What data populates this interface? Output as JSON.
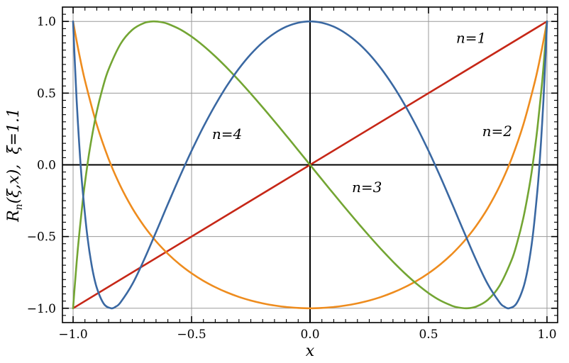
{
  "figure": {
    "background": "#ffffff",
    "frame_color": "#000000",
    "grid_color": "#9a9a9a",
    "axis_zero_color": "#000000",
    "tick_color": "#000000"
  },
  "chart_data": {
    "type": "line",
    "xlabel": "x",
    "ylabel": "Rn(ξ,x),  ξ=1.1",
    "ylabel_parts": {
      "base": "R",
      "sub": "n",
      "rest": "(ξ,x),  ξ=1.1"
    },
    "xlim": [
      -1.045,
      1.045
    ],
    "ylim": [
      -1.1,
      1.1
    ],
    "xticks": [
      -1.0,
      -0.5,
      0.0,
      0.5,
      1.0
    ],
    "xtick_labels": [
      "−1.0",
      "−0.5",
      "0.0",
      "0.5",
      "1.0"
    ],
    "yticks": [
      -1.0,
      -0.5,
      0.0,
      0.5,
      1.0
    ],
    "ytick_labels": [
      "−1.0",
      "−0.5",
      "0.0",
      "0.5",
      "1.0"
    ],
    "minor_tick_step": 0.05,
    "grid": true,
    "series": [
      {
        "name": "n=1",
        "color": "#c62717",
        "label_pos": [
          0.68,
          0.85
        ],
        "points": [
          [
            -1.0,
            -1.0
          ],
          [
            1.0,
            1.0
          ]
        ]
      },
      {
        "name": "n=2",
        "color": "#ee8c1e",
        "label_pos": [
          0.79,
          0.2
        ],
        "points": [
          [
            -1.0,
            1.0
          ],
          [
            -0.99,
            0.9071
          ],
          [
            -0.975,
            0.7783
          ],
          [
            -0.95,
            0.5882
          ],
          [
            -0.9,
            0.2796
          ],
          [
            -0.85,
            0.0406
          ],
          [
            -0.8,
            -0.149
          ],
          [
            -0.75,
            -0.3024
          ],
          [
            -0.7,
            -0.4283
          ],
          [
            -0.65,
            -0.5328
          ],
          [
            -0.6,
            -0.6203
          ],
          [
            -0.55,
            -0.694
          ],
          [
            -0.5,
            -0.7561
          ],
          [
            -0.45,
            -0.8087
          ],
          [
            -0.4,
            -0.853
          ],
          [
            -0.35,
            -0.8901
          ],
          [
            -0.3,
            -0.9209
          ],
          [
            -0.25,
            -0.946
          ],
          [
            -0.2,
            -0.9659
          ],
          [
            -0.15,
            -0.981
          ],
          [
            -0.1,
            -0.9916
          ],
          [
            -0.05,
            -0.9979
          ],
          [
            0.0,
            -1.0
          ],
          [
            0.05,
            -0.9979
          ],
          [
            0.1,
            -0.9916
          ],
          [
            0.15,
            -0.981
          ],
          [
            0.2,
            -0.9659
          ],
          [
            0.25,
            -0.946
          ],
          [
            0.3,
            -0.9209
          ],
          [
            0.35,
            -0.8901
          ],
          [
            0.4,
            -0.853
          ],
          [
            0.45,
            -0.8087
          ],
          [
            0.5,
            -0.7561
          ],
          [
            0.55,
            -0.694
          ],
          [
            0.6,
            -0.6203
          ],
          [
            0.65,
            -0.5328
          ],
          [
            0.7,
            -0.4283
          ],
          [
            0.75,
            -0.3024
          ],
          [
            0.8,
            -0.149
          ],
          [
            0.85,
            0.0406
          ],
          [
            0.9,
            0.2796
          ],
          [
            0.95,
            0.5882
          ],
          [
            0.975,
            0.7783
          ],
          [
            0.99,
            0.9071
          ],
          [
            1.0,
            1.0
          ]
        ]
      },
      {
        "name": "n=3",
        "color": "#73a533",
        "label_pos": [
          0.24,
          -0.19
        ],
        "points": [
          [
            -1.0,
            -1.0
          ],
          [
            -0.995,
            -0.8863
          ],
          [
            -0.98,
            -0.5857
          ],
          [
            -0.96,
            -0.2614
          ],
          [
            -0.94,
            -0.0037
          ],
          [
            -0.925,
            0.1557
          ],
          [
            -0.9,
            0.3711
          ],
          [
            -0.875,
            0.5376
          ],
          [
            -0.85,
            0.6666
          ],
          [
            -0.8,
            0.8425
          ],
          [
            -0.75,
            0.9418
          ],
          [
            -0.7,
            0.9891
          ],
          [
            -0.66,
            1.0
          ],
          [
            -0.625,
            0.9942
          ],
          [
            -0.6,
            0.9831
          ],
          [
            -0.55,
            0.9464
          ],
          [
            -0.5,
            0.8942
          ],
          [
            -0.45,
            0.83
          ],
          [
            -0.4,
            0.7563
          ],
          [
            -0.35,
            0.6752
          ],
          [
            -0.3,
            0.5881
          ],
          [
            -0.25,
            0.4965
          ],
          [
            -0.2,
            0.4011
          ],
          [
            -0.15,
            0.3031
          ],
          [
            -0.1,
            0.2031
          ],
          [
            -0.05,
            0.1019
          ],
          [
            0.0,
            0.0
          ],
          [
            0.05,
            -0.1019
          ],
          [
            0.1,
            -0.2031
          ],
          [
            0.15,
            -0.3031
          ],
          [
            0.2,
            -0.4011
          ],
          [
            0.25,
            -0.4965
          ],
          [
            0.3,
            -0.5881
          ],
          [
            0.35,
            -0.6752
          ],
          [
            0.4,
            -0.7563
          ],
          [
            0.45,
            -0.83
          ],
          [
            0.5,
            -0.8942
          ],
          [
            0.55,
            -0.9464
          ],
          [
            0.6,
            -0.9831
          ],
          [
            0.625,
            -0.9942
          ],
          [
            0.66,
            -1.0
          ],
          [
            0.7,
            -0.9891
          ],
          [
            0.75,
            -0.9418
          ],
          [
            0.8,
            -0.8425
          ],
          [
            0.85,
            -0.6666
          ],
          [
            0.875,
            -0.5376
          ],
          [
            0.9,
            -0.3711
          ],
          [
            0.925,
            -0.1557
          ],
          [
            0.94,
            0.0037
          ],
          [
            0.96,
            0.2614
          ],
          [
            0.98,
            0.5857
          ],
          [
            0.995,
            0.8863
          ],
          [
            1.0,
            1.0
          ]
        ]
      },
      {
        "name": "n=4",
        "color": "#3a68a2",
        "label_pos": [
          -0.35,
          0.18
        ],
        "points": [
          [
            -1.0,
            1.0
          ],
          [
            -0.995,
            0.7994
          ],
          [
            -0.99,
            0.6176
          ],
          [
            -0.985,
            0.4526
          ],
          [
            -0.98,
            0.3028
          ],
          [
            -0.97,
            0.0429
          ],
          [
            -0.96,
            -0.172
          ],
          [
            -0.94,
            -0.496
          ],
          [
            -0.92,
            -0.7144
          ],
          [
            -0.9,
            -0.8566
          ],
          [
            -0.87,
            -0.9695
          ],
          [
            -0.84,
            -1.0
          ],
          [
            -0.82,
            -0.9889
          ],
          [
            -0.8,
            -0.9594
          ],
          [
            -0.75,
            -0.832
          ],
          [
            -0.7,
            -0.6601
          ],
          [
            -0.65,
            -0.4692
          ],
          [
            -0.625,
            -0.3715
          ],
          [
            -0.6,
            -0.274
          ],
          [
            -0.55,
            -0.0832
          ],
          [
            -0.5,
            0.0977
          ],
          [
            -0.45,
            0.2653
          ],
          [
            -0.4,
            0.4175
          ],
          [
            -0.35,
            0.5531
          ],
          [
            -0.3,
            0.6712
          ],
          [
            -0.25,
            0.7715
          ],
          [
            -0.2,
            0.8537
          ],
          [
            -0.15,
            0.9177
          ],
          [
            -0.1,
            0.9634
          ],
          [
            -0.05,
            0.9908
          ],
          [
            0.0,
            1.0
          ],
          [
            0.05,
            0.9908
          ],
          [
            0.1,
            0.9634
          ],
          [
            0.15,
            0.9177
          ],
          [
            0.2,
            0.8537
          ],
          [
            0.25,
            0.7715
          ],
          [
            0.3,
            0.6712
          ],
          [
            0.35,
            0.5531
          ],
          [
            0.4,
            0.4175
          ],
          [
            0.45,
            0.2653
          ],
          [
            0.5,
            0.0977
          ],
          [
            0.55,
            -0.0832
          ],
          [
            0.6,
            -0.274
          ],
          [
            0.625,
            -0.3715
          ],
          [
            0.65,
            -0.4692
          ],
          [
            0.7,
            -0.6601
          ],
          [
            0.75,
            -0.832
          ],
          [
            0.8,
            -0.9594
          ],
          [
            0.82,
            -0.9889
          ],
          [
            0.84,
            -1.0
          ],
          [
            0.87,
            -0.9695
          ],
          [
            0.9,
            -0.8566
          ],
          [
            0.92,
            -0.7144
          ],
          [
            0.94,
            -0.496
          ],
          [
            0.96,
            -0.172
          ],
          [
            0.97,
            0.0429
          ],
          [
            0.98,
            0.3028
          ],
          [
            0.985,
            0.4526
          ],
          [
            0.99,
            0.6176
          ],
          [
            0.995,
            0.7994
          ],
          [
            1.0,
            1.0
          ]
        ]
      }
    ]
  }
}
